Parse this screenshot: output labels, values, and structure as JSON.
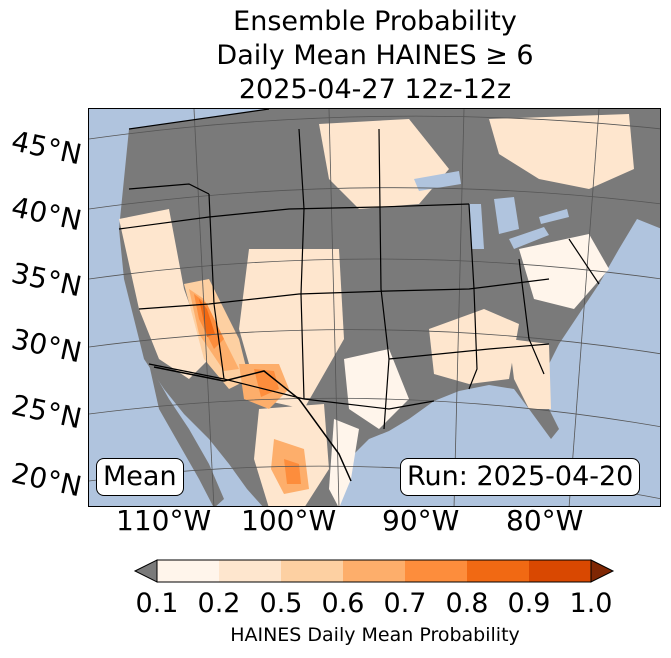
{
  "title": {
    "line1": "Ensemble Probability",
    "line2": "Daily Mean HAINES ≥ 6",
    "line3": "2025-04-27 12z-12z"
  },
  "map": {
    "lat_labels": [
      "45°N",
      "40°N",
      "35°N",
      "30°N",
      "25°N",
      "20°N"
    ],
    "lon_labels": [
      "110°W",
      "100°W",
      "90°W",
      "80°W"
    ],
    "mean_badge": "Mean",
    "run_badge": "Run: 2025-04-20",
    "colors": {
      "ocean": "#b0c4de",
      "land_no_data": "#7a7a7a",
      "prob_01": "#fff5eb",
      "prob_02": "#fee6ce",
      "prob_05": "#fdd0a2",
      "prob_06": "#fdae6b",
      "prob_07": "#fd8d3c",
      "prob_08": "#f16913",
      "prob_09": "#d94801",
      "prob_10": "#a63603"
    }
  },
  "colorbar": {
    "ticks": [
      "0.1",
      "0.2",
      "0.5",
      "0.6",
      "0.7",
      "0.8",
      "0.9",
      "1.0"
    ],
    "label": "HAINES Daily Mean Probability",
    "under_color": "#7a7a7a",
    "over_color": "#7f2704",
    "bin_colors": [
      "#fff5eb",
      "#fee6ce",
      "#fdd0a2",
      "#fdae6b",
      "#fd8d3c",
      "#f16913",
      "#d94801"
    ]
  }
}
